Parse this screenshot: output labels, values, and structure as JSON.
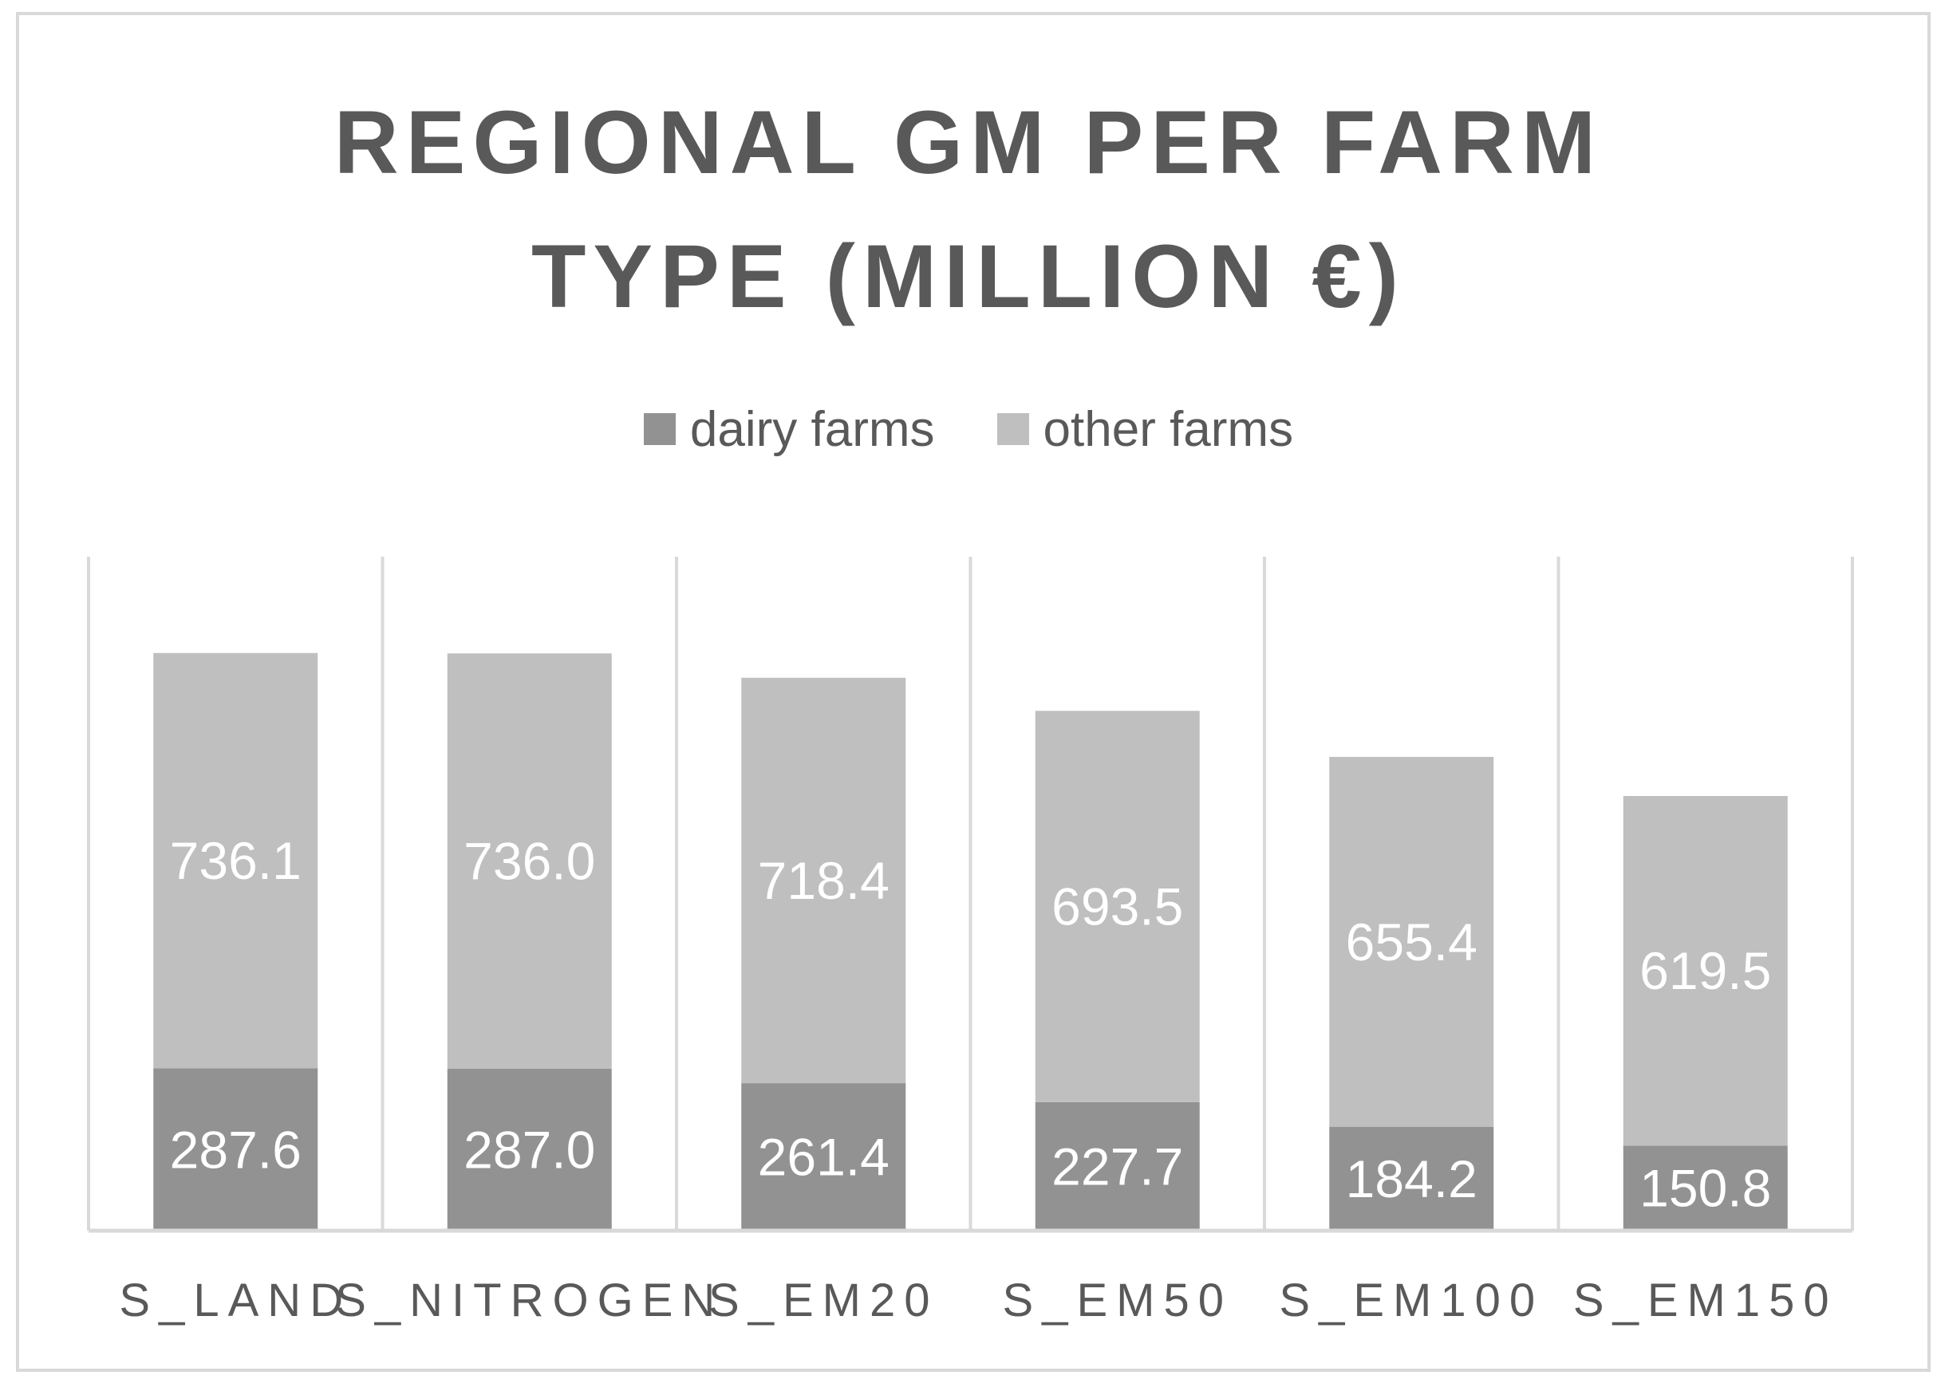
{
  "chart_data": {
    "type": "bar",
    "stacked": true,
    "title": "REGIONAL GM PER FARM TYPE (MILLION €)",
    "title_lines": [
      "REGIONAL GM PER FARM",
      "TYPE (MILLION €)"
    ],
    "categories": [
      "S_LAND",
      "S_NITROGEN",
      "S_EM20",
      "S_EM50",
      "S_EM100",
      "S_EM150"
    ],
    "series": [
      {
        "name": "dairy farms",
        "color": "#929292",
        "values": [
          287.6,
          287.0,
          261.4,
          227.7,
          184.2,
          150.8
        ]
      },
      {
        "name": "other farms",
        "color": "#bfbfbf",
        "values": [
          736.1,
          736.0,
          718.4,
          693.5,
          655.4,
          619.5
        ]
      }
    ],
    "data_labels": true,
    "legend_position": "top",
    "gridlines": "vertical",
    "axis_color": "#d9d9d9",
    "ylim": [
      0,
      1200
    ]
  }
}
